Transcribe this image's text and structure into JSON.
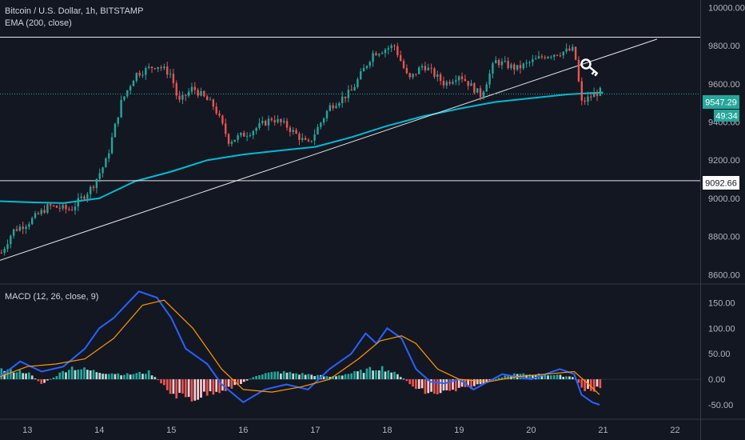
{
  "legend": {
    "title": "Bitcoin / U.S. Dollar, 1h, BITSTAMP",
    "ema_label": "EMA (200, close)",
    "macd_label": "MACD (12, 26, close, 9)"
  },
  "price_tag": {
    "value": "9547.29",
    "countdown": "49:34"
  },
  "level_tag": "9092.66",
  "colors": {
    "background": "#131722",
    "up": "#26a69a",
    "down": "#ef5350",
    "ema": "#00bcd4",
    "macd": "#2962ff",
    "signal": "#ff9800",
    "drawing": "#e6e6e6"
  },
  "chart_data": [
    {
      "type": "candlestick",
      "title": "Bitcoin / U.S. Dollar, 1h, BITSTAMP",
      "x_ticks": [
        {
          "label": "13",
          "day": 13
        },
        {
          "label": "14",
          "day": 14
        },
        {
          "label": "15",
          "day": 15
        },
        {
          "label": "16",
          "day": 16
        },
        {
          "label": "17",
          "day": 17
        },
        {
          "label": "18",
          "day": 18
        },
        {
          "label": "19",
          "day": 19
        },
        {
          "label": "20",
          "day": 20
        },
        {
          "label": "21",
          "day": 21
        },
        {
          "label": "22",
          "day": 22
        }
      ],
      "xlim": [
        12.62,
        22.35
      ],
      "y_ticks": [
        "8600.00",
        "8800.00",
        "9000.00",
        "9200.00",
        "9400.00",
        "9600.00",
        "9800.00",
        "10000.00"
      ],
      "ylim": [
        8555,
        10040
      ],
      "last_price": 9547.29,
      "horizontal_levels": [
        9845,
        9092.66
      ],
      "trendline": {
        "start": [
          12.62,
          8675
        ],
        "end": [
          21.75,
          9835
        ]
      },
      "series": [
        {
          "name": "EMA (200, close)",
          "points": [
            [
              12.62,
              8985
            ],
            [
              13.0,
              8980
            ],
            [
              13.5,
              8975
            ],
            [
              14.0,
              9000
            ],
            [
              14.5,
              9090
            ],
            [
              15.0,
              9140
            ],
            [
              15.5,
              9200
            ],
            [
              16.0,
              9230
            ],
            [
              16.5,
              9250
            ],
            [
              17.0,
              9270
            ],
            [
              17.5,
              9320
            ],
            [
              18.0,
              9380
            ],
            [
              18.5,
              9430
            ],
            [
              19.0,
              9470
            ],
            [
              19.5,
              9505
            ],
            [
              20.0,
              9525
            ],
            [
              20.5,
              9545
            ],
            [
              20.75,
              9550
            ],
            [
              21.0,
              9555
            ]
          ]
        }
      ],
      "anchors": [
        [
          12.62,
          8700
        ],
        [
          12.8,
          8830
        ],
        [
          13.0,
          8870
        ],
        [
          13.3,
          8960
        ],
        [
          13.6,
          8940
        ],
        [
          13.9,
          9060
        ],
        [
          14.1,
          9200
        ],
        [
          14.3,
          9500
        ],
        [
          14.5,
          9650
        ],
        [
          14.8,
          9700
        ],
        [
          15.0,
          9650
        ],
        [
          15.1,
          9500
        ],
        [
          15.3,
          9580
        ],
        [
          15.6,
          9480
        ],
        [
          15.8,
          9300
        ],
        [
          16.1,
          9350
        ],
        [
          16.4,
          9420
        ],
        [
          16.6,
          9380
        ],
        [
          16.9,
          9280
        ],
        [
          17.2,
          9480
        ],
        [
          17.5,
          9560
        ],
        [
          17.8,
          9760
        ],
        [
          18.1,
          9800
        ],
        [
          18.3,
          9620
        ],
        [
          18.5,
          9700
        ],
        [
          18.8,
          9600
        ],
        [
          19.0,
          9650
        ],
        [
          19.3,
          9540
        ],
        [
          19.5,
          9720
        ],
        [
          19.8,
          9680
        ],
        [
          20.2,
          9750
        ],
        [
          20.6,
          9780
        ],
        [
          20.7,
          9500
        ],
        [
          20.85,
          9540
        ],
        [
          20.95,
          9560
        ]
      ]
    },
    {
      "type": "macd",
      "title": "MACD (12, 26, close, 9)",
      "y_ticks": [
        "-50.00",
        "0.00",
        "50.00",
        "100.00",
        "150.00"
      ],
      "ylim": [
        -75,
        185
      ],
      "series": [
        {
          "name": "MACD",
          "points": [
            [
              12.62,
              5
            ],
            [
              12.9,
              35
            ],
            [
              13.2,
              15
            ],
            [
              13.5,
              25
            ],
            [
              13.8,
              60
            ],
            [
              14.0,
              100
            ],
            [
              14.2,
              120
            ],
            [
              14.4,
              150
            ],
            [
              14.55,
              172
            ],
            [
              14.8,
              160
            ],
            [
              15.0,
              120
            ],
            [
              15.2,
              60
            ],
            [
              15.5,
              30
            ],
            [
              15.7,
              -10
            ],
            [
              16.0,
              -45
            ],
            [
              16.3,
              -20
            ],
            [
              16.6,
              -10
            ],
            [
              16.9,
              -20
            ],
            [
              17.2,
              20
            ],
            [
              17.5,
              50
            ],
            [
              17.7,
              90
            ],
            [
              17.85,
              70
            ],
            [
              18.0,
              100
            ],
            [
              18.2,
              80
            ],
            [
              18.4,
              20
            ],
            [
              18.6,
              -5
            ],
            [
              18.8,
              -8
            ],
            [
              19.0,
              0
            ],
            [
              19.2,
              -20
            ],
            [
              19.4,
              -5
            ],
            [
              19.6,
              10
            ],
            [
              20.0,
              0
            ],
            [
              20.4,
              20
            ],
            [
              20.6,
              10
            ],
            [
              20.7,
              -30
            ],
            [
              20.85,
              -45
            ],
            [
              20.95,
              -50
            ]
          ]
        },
        {
          "name": "Signal",
          "points": [
            [
              12.62,
              5
            ],
            [
              13.0,
              25
            ],
            [
              13.4,
              30
            ],
            [
              13.8,
              40
            ],
            [
              14.2,
              80
            ],
            [
              14.6,
              145
            ],
            [
              14.9,
              155
            ],
            [
              15.3,
              100
            ],
            [
              15.7,
              20
            ],
            [
              16.0,
              -20
            ],
            [
              16.4,
              -25
            ],
            [
              16.8,
              -15
            ],
            [
              17.2,
              0
            ],
            [
              17.6,
              40
            ],
            [
              17.9,
              75
            ],
            [
              18.2,
              85
            ],
            [
              18.4,
              70
            ],
            [
              18.7,
              20
            ],
            [
              19.0,
              0
            ],
            [
              19.4,
              -5
            ],
            [
              19.8,
              5
            ],
            [
              20.2,
              10
            ],
            [
              20.6,
              15
            ],
            [
              20.8,
              -10
            ],
            [
              20.95,
              -30
            ]
          ]
        }
      ],
      "histogram": {
        "name": "Histogram",
        "anchors": [
          [
            12.62,
            20
          ],
          [
            13.0,
            15
          ],
          [
            13.2,
            -10
          ],
          [
            13.6,
            25
          ],
          [
            14.0,
            15
          ],
          [
            14.4,
            10
          ],
          [
            14.7,
            15
          ],
          [
            15.0,
            -30
          ],
          [
            15.3,
            -40
          ],
          [
            15.6,
            -25
          ],
          [
            15.9,
            -15
          ],
          [
            16.2,
            10
          ],
          [
            16.5,
            15
          ],
          [
            16.9,
            10
          ],
          [
            17.2,
            5
          ],
          [
            17.6,
            15
          ],
          [
            17.9,
            25
          ],
          [
            18.0,
            20
          ],
          [
            18.2,
            5
          ],
          [
            18.4,
            -20
          ],
          [
            18.6,
            -30
          ],
          [
            18.9,
            -25
          ],
          [
            19.2,
            -15
          ],
          [
            19.4,
            -5
          ],
          [
            19.7,
            10
          ],
          [
            20.2,
            10
          ],
          [
            20.6,
            5
          ],
          [
            20.75,
            -25
          ],
          [
            20.9,
            -20
          ],
          [
            21.0,
            -15
          ]
        ]
      }
    }
  ]
}
